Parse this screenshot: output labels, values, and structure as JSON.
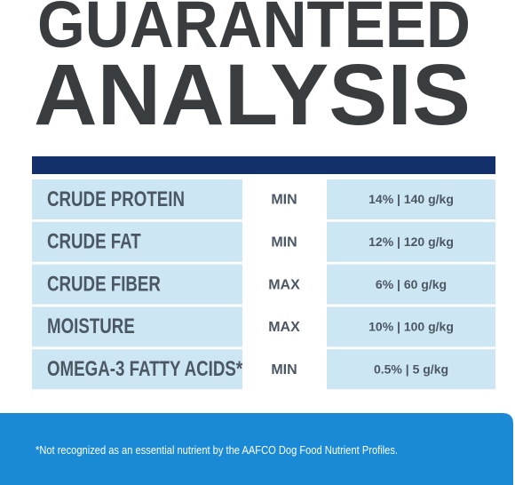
{
  "header": {
    "title_line1": "GUARANTEED",
    "title_line2": "ANALYSIS"
  },
  "table": {
    "rows": [
      [
        "CRUDE PROTEIN",
        "MIN",
        "14% | 140 g/kg"
      ],
      [
        "CRUDE FAT",
        "MIN",
        "12% | 120 g/kg"
      ],
      [
        "CRUDE FIBER",
        "MAX",
        "6% | 60 g/kg"
      ],
      [
        "MOISTURE",
        "MAX",
        "10% | 100 g/kg"
      ],
      [
        "OMEGA-3 FATTY ACIDS*",
        "MIN",
        "0.5% | 5 g/kg"
      ]
    ]
  },
  "footnote": "*Not recognized as an essential nutrient by the AAFCO Dog Food Nutrient Profiles."
}
